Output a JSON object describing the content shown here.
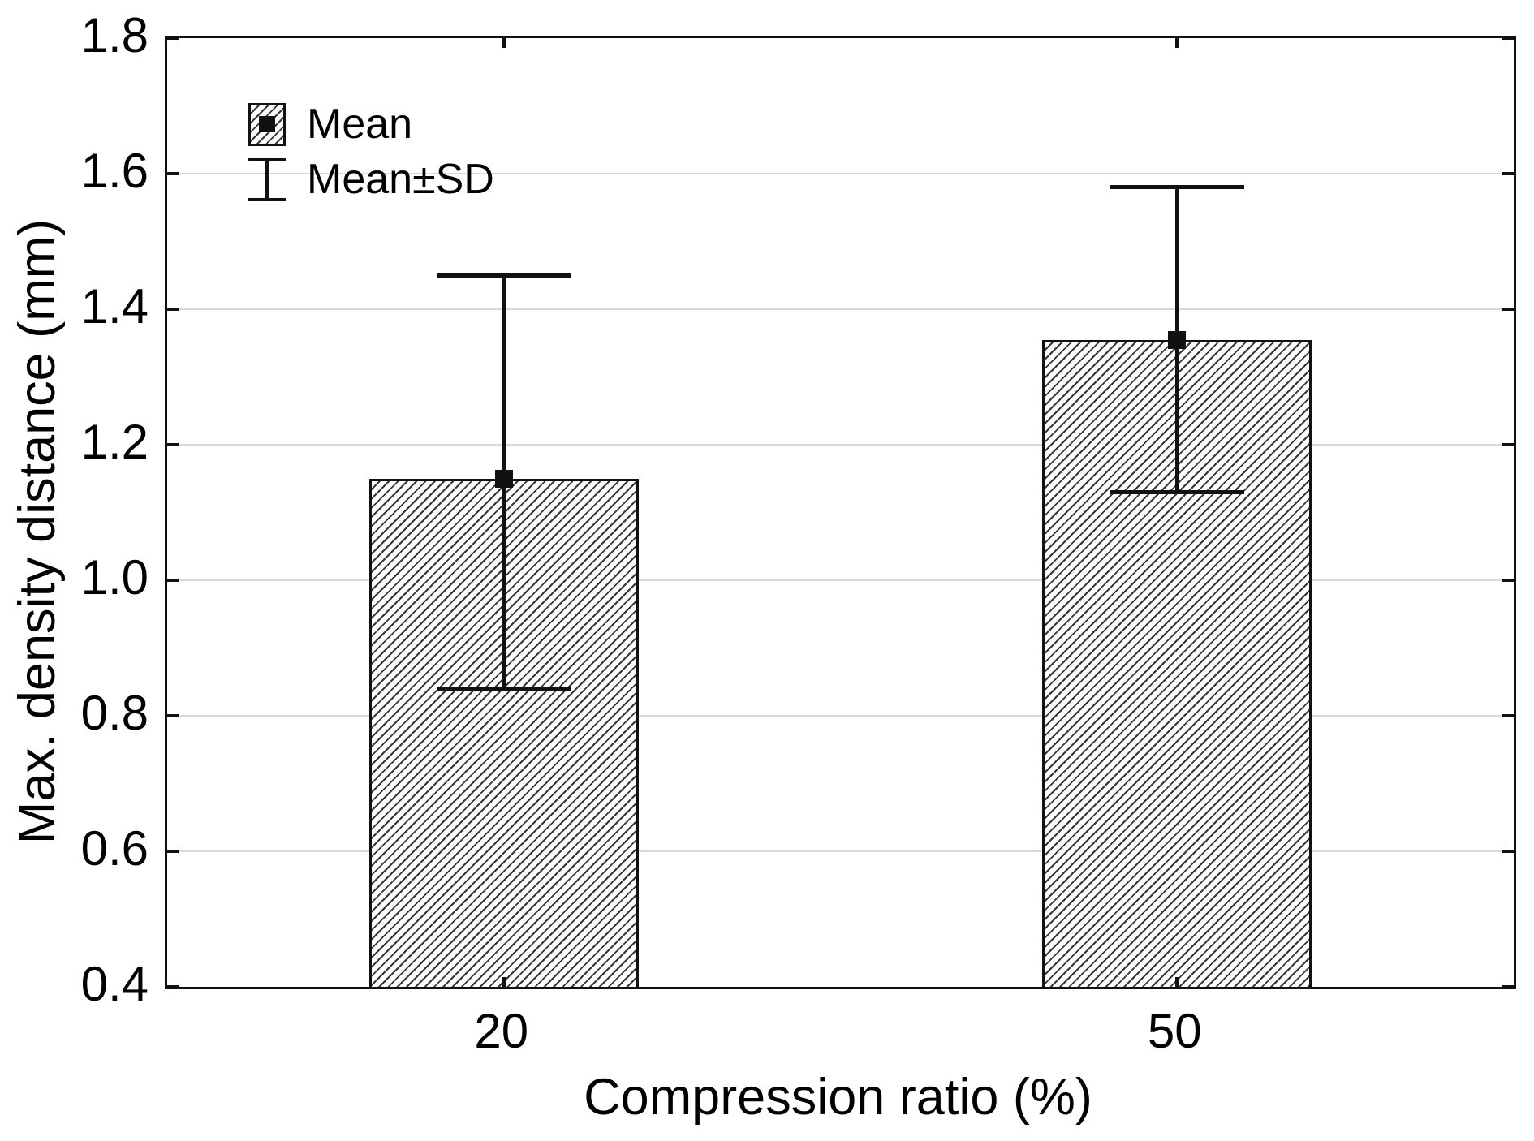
{
  "chart_data": {
    "type": "bar",
    "title": "",
    "xlabel": "Compression ratio (%)",
    "ylabel": "Max. density distance (mm)",
    "ylim": [
      0.4,
      1.8
    ],
    "ytick_step": 0.2,
    "yticks": [
      {
        "value": 1.8,
        "label": "1.8"
      },
      {
        "value": 1.6,
        "label": "1.6"
      },
      {
        "value": 1.4,
        "label": "1.4"
      },
      {
        "value": 1.2,
        "label": "1.2"
      },
      {
        "value": 1.0,
        "label": "1.0"
      },
      {
        "value": 0.8,
        "label": "0.8"
      },
      {
        "value": 0.6,
        "label": "0.6"
      },
      {
        "value": 0.4,
        "label": "0.4"
      }
    ],
    "categories": [
      "20",
      "50"
    ],
    "bars": [
      {
        "category": "20",
        "mean": 1.15,
        "sd_low": 0.84,
        "sd_high": 1.45
      },
      {
        "category": "50",
        "mean": 1.355,
        "sd_low": 1.13,
        "sd_high": 1.58
      }
    ],
    "grid": "horizontal gridlines at every 0.2, drawn behind bars",
    "legend": {
      "position": "top-left-inside",
      "items": [
        {
          "marker": "hatched-square-with-black-dot",
          "label": "Mean"
        },
        {
          "marker": "error-bar-i-beam",
          "label": "Mean±SD"
        }
      ]
    },
    "style": {
      "bar_fill": "#ffffff",
      "bar_hatch": "black diagonal lines (45°, /)",
      "foreground": "#000000",
      "gridline_color": "#d9d9d9",
      "marker": "black filled square at bar top"
    }
  }
}
